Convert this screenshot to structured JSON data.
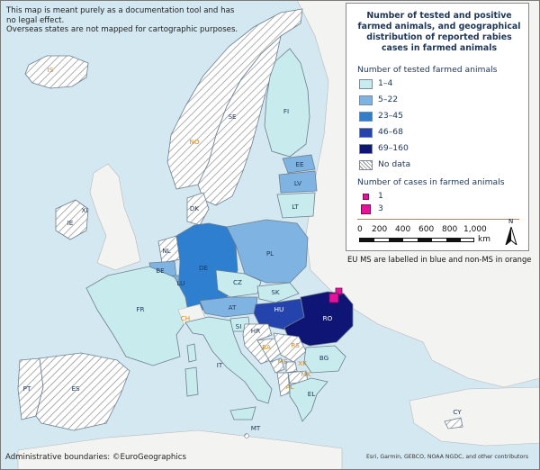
{
  "map": {
    "disclaimer_lines": [
      "This map is meant purely as a documentation tool and has",
      "no legal effect.",
      "Overseas states are not mapped for cartographic purposes."
    ],
    "credits": "Administrative boundaries: ©EuroGeographics",
    "attribution": "Esri, Garmin, GEBCO, NOAA NGDC, and other contributors",
    "eu_note": "EU MS are labelled in blue and non-MS in orange"
  },
  "legend": {
    "title": "Number of tested and positive farmed animals, and geographical distribution of reported rabies cases in farmed animals",
    "tested_heading": "Number of tested farmed animals",
    "classes": [
      {
        "label": "1–4",
        "color": "#c8ecee"
      },
      {
        "label": "5–22",
        "color": "#7fb4e2"
      },
      {
        "label": "23–45",
        "color": "#2f7fd0"
      },
      {
        "label": "46–68",
        "color": "#2543ad"
      },
      {
        "label": "69–160",
        "color": "#0f1574"
      },
      {
        "label": "No data",
        "pattern": "hatch"
      }
    ],
    "cases_heading": "Number of cases in farmed animals",
    "cases": [
      {
        "label": "1",
        "color": "#e8119b"
      },
      {
        "label": "3",
        "color": "#e8119b"
      }
    ],
    "scale": {
      "ticks": [
        "0",
        "200",
        "400",
        "600",
        "800",
        "1,000"
      ],
      "unit": "km",
      "north": "N"
    }
  },
  "countries": {
    "eu": [
      {
        "code": "FI",
        "value_class": "1–4"
      },
      {
        "code": "SE",
        "value_class": "No data"
      },
      {
        "code": "EE",
        "value_class": "5–22"
      },
      {
        "code": "LV",
        "value_class": "5–22"
      },
      {
        "code": "LT",
        "value_class": "1–4"
      },
      {
        "code": "DK",
        "value_class": "No data"
      },
      {
        "code": "IE",
        "value_class": "No data"
      },
      {
        "code": "NL",
        "value_class": "No data"
      },
      {
        "code": "BE",
        "value_class": "5–22"
      },
      {
        "code": "LU",
        "value_class": "5–22"
      },
      {
        "code": "DE",
        "value_class": "23–45"
      },
      {
        "code": "PL",
        "value_class": "5–22"
      },
      {
        "code": "CZ",
        "value_class": "1–4"
      },
      {
        "code": "SK",
        "value_class": "1–4"
      },
      {
        "code": "AT",
        "value_class": "5–22"
      },
      {
        "code": "HU",
        "value_class": "46–68"
      },
      {
        "code": "SI",
        "value_class": "1–4"
      },
      {
        "code": "HR",
        "value_class": "No data"
      },
      {
        "code": "RO",
        "value_class": "69–160"
      },
      {
        "code": "BG",
        "value_class": "1–4"
      },
      {
        "code": "FR",
        "value_class": "1–4"
      },
      {
        "code": "PT",
        "value_class": "No data"
      },
      {
        "code": "ES",
        "value_class": "No data"
      },
      {
        "code": "IT",
        "value_class": "1–4"
      },
      {
        "code": "EL",
        "value_class": "1–4"
      },
      {
        "code": "MT",
        "value_class": "No data"
      },
      {
        "code": "CY",
        "value_class": "No data"
      }
    ],
    "non_eu": [
      "IS",
      "NO",
      "XI",
      "CH",
      "BA",
      "RS",
      "ME",
      "XK",
      "MK",
      "AL"
    ],
    "case_locations": [
      {
        "country": "RO",
        "cases": "1"
      },
      {
        "country": "RO",
        "cases": "3"
      }
    ]
  },
  "colors": {
    "sea": "#d4e8f1",
    "land_outside": "#f3f3f1",
    "border": "#6b7f90",
    "eu_label": "#1d3557",
    "non_eu_label": "#d48a14",
    "case": "#e8119b"
  }
}
